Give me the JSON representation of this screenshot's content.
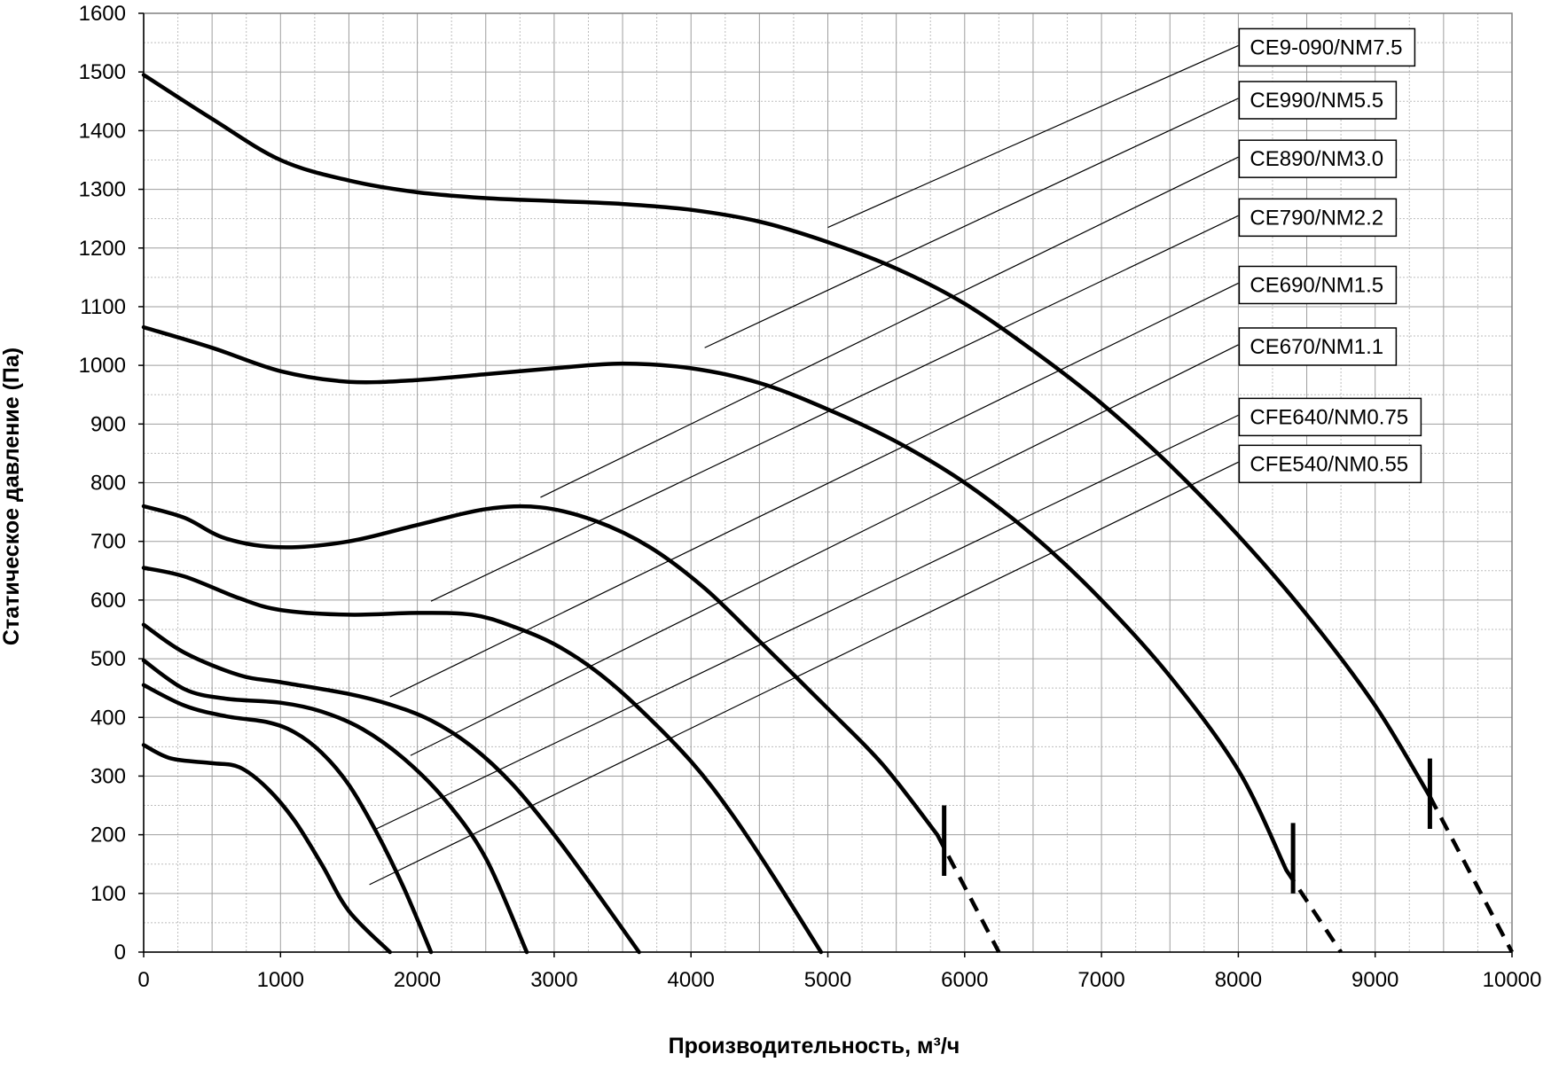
{
  "chart_data": {
    "type": "line",
    "title": "",
    "xlabel": "Производительность, м³/ч",
    "ylabel": "Статическое давление (Па)",
    "xlim": [
      0,
      10000
    ],
    "ylim": [
      0,
      1600
    ],
    "x_ticks": [
      "0",
      "1000",
      "2000",
      "3000",
      "4000",
      "5000",
      "6000",
      "7000",
      "8000",
      "9000",
      "10000"
    ],
    "y_ticks": [
      "0",
      "100",
      "200",
      "300",
      "400",
      "500",
      "600",
      "700",
      "800",
      "900",
      "1000",
      "1100",
      "1200",
      "1300",
      "1400",
      "1500",
      "1600"
    ],
    "grid": true,
    "series": [
      {
        "name": "CE9-090/NM7.5",
        "points": [
          [
            0,
            1495
          ],
          [
            500,
            1420
          ],
          [
            1000,
            1350
          ],
          [
            1500,
            1315
          ],
          [
            2000,
            1295
          ],
          [
            2500,
            1285
          ],
          [
            3000,
            1280
          ],
          [
            3500,
            1275
          ],
          [
            4000,
            1265
          ],
          [
            4500,
            1245
          ],
          [
            5000,
            1210
          ],
          [
            5500,
            1165
          ],
          [
            6000,
            1105
          ],
          [
            6500,
            1025
          ],
          [
            7000,
            935
          ],
          [
            7500,
            830
          ],
          [
            8000,
            710
          ],
          [
            8500,
            575
          ],
          [
            9000,
            420
          ],
          [
            9400,
            265
          ]
        ],
        "dashed": [
          [
            9400,
            265
          ],
          [
            10000,
            0
          ]
        ],
        "limit_marker": [
          9400,
          270
        ]
      },
      {
        "name": "CE990/NM5.5",
        "points": [
          [
            0,
            1065
          ],
          [
            500,
            1030
          ],
          [
            1000,
            990
          ],
          [
            1500,
            972
          ],
          [
            2000,
            975
          ],
          [
            2500,
            985
          ],
          [
            3000,
            995
          ],
          [
            3500,
            1003
          ],
          [
            4000,
            995
          ],
          [
            4500,
            970
          ],
          [
            5000,
            925
          ],
          [
            5500,
            870
          ],
          [
            6000,
            800
          ],
          [
            6500,
            710
          ],
          [
            7000,
            600
          ],
          [
            7500,
            470
          ],
          [
            8000,
            310
          ],
          [
            8350,
            140
          ]
        ],
        "dashed": [
          [
            8350,
            140
          ],
          [
            8750,
            0
          ]
        ],
        "limit_marker": [
          8400,
          160
        ]
      },
      {
        "name": "CE890/NM3.0",
        "points": [
          [
            0,
            760
          ],
          [
            300,
            740
          ],
          [
            600,
            705
          ],
          [
            1000,
            690
          ],
          [
            1500,
            700
          ],
          [
            2000,
            728
          ],
          [
            2500,
            755
          ],
          [
            2900,
            758
          ],
          [
            3300,
            735
          ],
          [
            3700,
            690
          ],
          [
            4100,
            620
          ],
          [
            4500,
            530
          ],
          [
            5000,
            415
          ],
          [
            5400,
            320
          ],
          [
            5800,
            200
          ]
        ],
        "dashed": [
          [
            5800,
            200
          ],
          [
            6250,
            0
          ]
        ],
        "limit_marker": [
          5850,
          190
        ]
      },
      {
        "name": "CE790/NM2.2",
        "points": [
          [
            0,
            655
          ],
          [
            300,
            640
          ],
          [
            700,
            603
          ],
          [
            1000,
            583
          ],
          [
            1500,
            575
          ],
          [
            2000,
            578
          ],
          [
            2400,
            575
          ],
          [
            2700,
            555
          ],
          [
            3000,
            525
          ],
          [
            3300,
            480
          ],
          [
            3600,
            420
          ],
          [
            4000,
            325
          ],
          [
            4300,
            235
          ],
          [
            4600,
            130
          ],
          [
            4950,
            0
          ]
        ]
      },
      {
        "name": "CE690/NM1.5",
        "points": [
          [
            0,
            558
          ],
          [
            300,
            510
          ],
          [
            700,
            472
          ],
          [
            1000,
            460
          ],
          [
            1500,
            440
          ],
          [
            1800,
            422
          ],
          [
            2100,
            395
          ],
          [
            2400,
            350
          ],
          [
            2700,
            285
          ],
          [
            3000,
            200
          ],
          [
            3300,
            105
          ],
          [
            3620,
            0
          ]
        ]
      },
      {
        "name": "CE670/NM1.1",
        "points": [
          [
            0,
            497
          ],
          [
            300,
            448
          ],
          [
            600,
            432
          ],
          [
            1000,
            425
          ],
          [
            1300,
            410
          ],
          [
            1600,
            380
          ],
          [
            1900,
            330
          ],
          [
            2200,
            260
          ],
          [
            2500,
            160
          ],
          [
            2800,
            0
          ]
        ]
      },
      {
        "name": "CFE640/NM0.75",
        "points": [
          [
            0,
            455
          ],
          [
            300,
            420
          ],
          [
            600,
            402
          ],
          [
            900,
            392
          ],
          [
            1100,
            375
          ],
          [
            1300,
            340
          ],
          [
            1500,
            285
          ],
          [
            1700,
            205
          ],
          [
            1900,
            110
          ],
          [
            2100,
            0
          ]
        ]
      },
      {
        "name": "CFE540/NM0.55",
        "points": [
          [
            0,
            353
          ],
          [
            200,
            330
          ],
          [
            500,
            322
          ],
          [
            700,
            315
          ],
          [
            900,
            280
          ],
          [
            1100,
            225
          ],
          [
            1300,
            150
          ],
          [
            1500,
            70
          ],
          [
            1800,
            0
          ]
        ]
      }
    ],
    "leader_lines": [
      {
        "from": [
          5000,
          1235
        ],
        "to": [
          8000,
          1545
        ]
      },
      {
        "from": [
          4100,
          1030
        ],
        "to": [
          8000,
          1455
        ]
      },
      {
        "from": [
          2900,
          775
        ],
        "to": [
          8000,
          1355
        ]
      },
      {
        "from": [
          2100,
          598
        ],
        "to": [
          8000,
          1255
        ]
      },
      {
        "from": [
          1800,
          435
        ],
        "to": [
          8000,
          1140
        ]
      },
      {
        "from": [
          1950,
          335
        ],
        "to": [
          8000,
          1035
        ]
      },
      {
        "from": [
          1700,
          210
        ],
        "to": [
          8000,
          915
        ]
      },
      {
        "from": [
          1650,
          115
        ],
        "to": [
          8000,
          835
        ]
      }
    ]
  }
}
